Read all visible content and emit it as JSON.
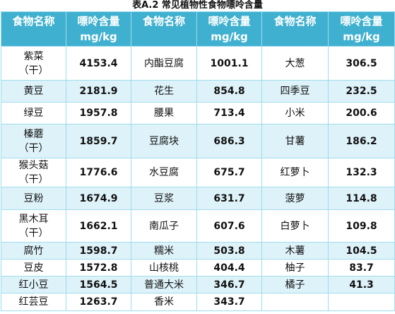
{
  "title": "表A.2 常见植物性食物嘌呤含量",
  "header": {
    "name_label": "食物名称",
    "value_label_line1": "嘌呤含量",
    "value_label_line2": "mg/kg"
  },
  "rows": [
    [
      {
        "name": [
          "紫菜",
          "（干）"
        ],
        "value": "4153.4"
      },
      {
        "name": [
          "内酯豆腐"
        ],
        "value": "1001.1"
      },
      {
        "name": [
          "大葱"
        ],
        "value": "306.5"
      }
    ],
    [
      {
        "name": [
          "黄豆"
        ],
        "value": "2181.9"
      },
      {
        "name": [
          "花生"
        ],
        "value": "854.8"
      },
      {
        "name": [
          "四季豆"
        ],
        "value": "232.5"
      }
    ],
    [
      {
        "name": [
          "绿豆"
        ],
        "value": "1957.8"
      },
      {
        "name": [
          "腰果"
        ],
        "value": "713.4"
      },
      {
        "name": [
          "小米"
        ],
        "value": "200.6"
      }
    ],
    [
      {
        "name": [
          "榛蘑",
          "（干）"
        ],
        "value": "1859.7"
      },
      {
        "name": [
          "豆腐块"
        ],
        "value": "686.3"
      },
      {
        "name": [
          "甘薯"
        ],
        "value": "186.2"
      }
    ],
    [
      {
        "name": [
          "猴头菇",
          "（干）"
        ],
        "value": "1776.6"
      },
      {
        "name": [
          "水豆腐"
        ],
        "value": "675.7"
      },
      {
        "name": [
          "红萝卜"
        ],
        "value": "132.3"
      }
    ],
    [
      {
        "name": [
          "豆粉"
        ],
        "value": "1674.9"
      },
      {
        "name": [
          "豆浆"
        ],
        "value": "631.7"
      },
      {
        "name": [
          "菠萝"
        ],
        "value": "114.8"
      }
    ],
    [
      {
        "name": [
          "黑木耳",
          "（干）"
        ],
        "value": "1662.1"
      },
      {
        "name": [
          "南瓜子"
        ],
        "value": "607.6"
      },
      {
        "name": [
          "白萝卜"
        ],
        "value": "109.8"
      }
    ],
    [
      {
        "name": [
          "腐竹"
        ],
        "value": "1598.7"
      },
      {
        "name": [
          "糯米"
        ],
        "value": "503.8"
      },
      {
        "name": [
          "木薯"
        ],
        "value": "104.5"
      }
    ],
    [
      {
        "name": [
          "豆皮"
        ],
        "value": "1572.8"
      },
      {
        "name": [
          "山核桃"
        ],
        "value": "404.4"
      },
      {
        "name": [
          "柚子"
        ],
        "value": "83.7"
      }
    ],
    [
      {
        "name": [
          "红小豆"
        ],
        "value": "1564.5"
      },
      {
        "name": [
          "普通大米"
        ],
        "value": "346.7"
      },
      {
        "name": [
          "橘子"
        ],
        "value": "41.3"
      }
    ],
    [
      {
        "name": [
          "红芸豆"
        ],
        "value": "1263.7"
      },
      {
        "name": [
          "香米"
        ],
        "value": "343.7"
      },
      {
        "name": [],
        "value": ""
      }
    ]
  ]
}
